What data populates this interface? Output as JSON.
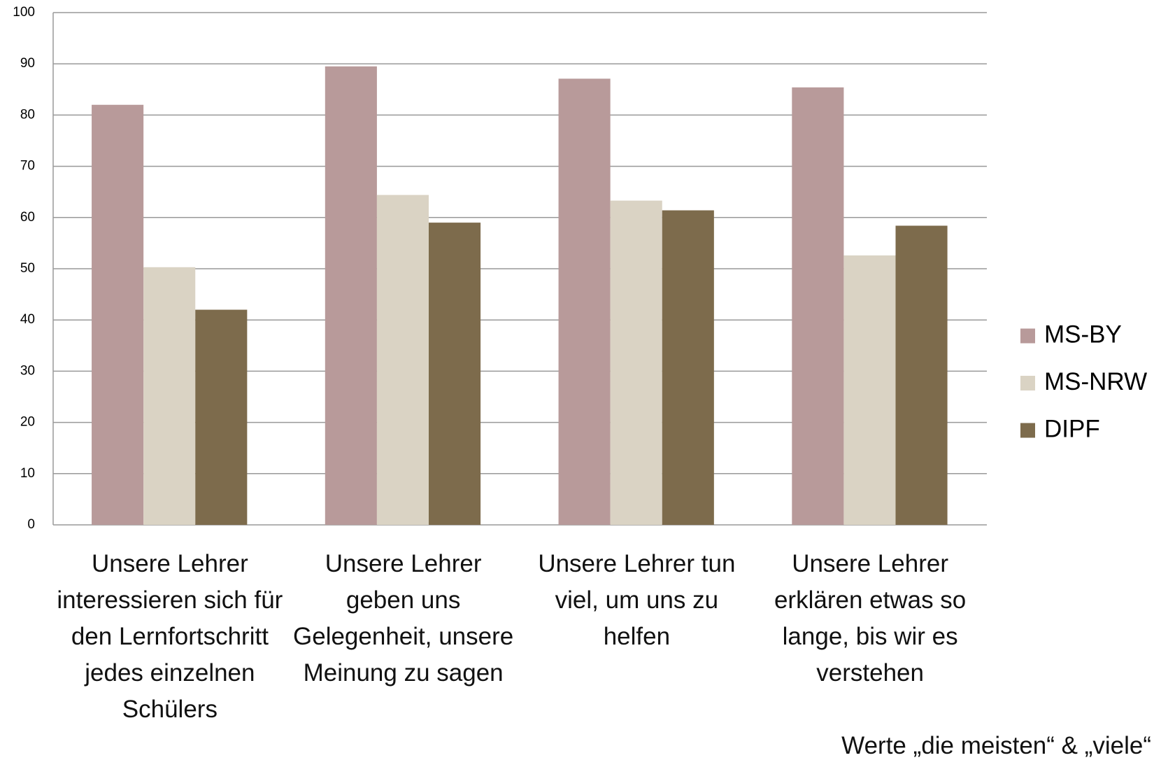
{
  "chart_data": {
    "type": "bar",
    "categories": [
      "Unsere Lehrer interessieren sich für den Lernfortschritt jedes einzelnen Schülers",
      "Unsere Lehrer geben uns Gelegenheit, unsere Meinung zu sagen",
      "Unsere Lehrer tun viel, um uns zu helfen",
      "Unsere Lehrer erklären etwas so lange, bis wir es verstehen"
    ],
    "series": [
      {
        "name": "MS-BY",
        "color": "#b89a9a",
        "values": [
          82,
          89.5,
          87.1,
          85.4
        ]
      },
      {
        "name": "MS-NRW",
        "color": "#dad3c4",
        "values": [
          50.3,
          64.4,
          63.3,
          52.6
        ]
      },
      {
        "name": "DIPF",
        "color": "#7d6b4c",
        "values": [
          42,
          59,
          61.4,
          58.4
        ]
      }
    ],
    "ylim": [
      0,
      100
    ],
    "yticks": [
      0,
      10,
      20,
      30,
      40,
      50,
      60,
      70,
      80,
      90,
      100
    ],
    "grid": true,
    "legend": "right",
    "annotation": "Werte „die meisten“ & „viele“"
  }
}
